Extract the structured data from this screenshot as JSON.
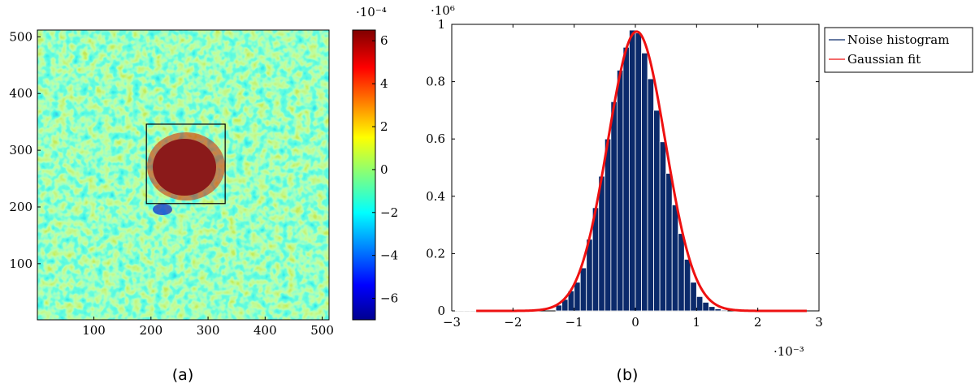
{
  "chart_data": [
    {
      "type": "heatmap",
      "caption": "(a)",
      "x_ticks": [
        "100",
        "200",
        "300",
        "400",
        "500"
      ],
      "x_tick_values": [
        100,
        200,
        300,
        400,
        500
      ],
      "y_ticks": [
        "100",
        "200",
        "300",
        "400",
        "500"
      ],
      "y_tick_values": [
        100,
        200,
        300,
        400,
        500
      ],
      "xlim": [
        1,
        512
      ],
      "ylim": [
        1,
        512
      ],
      "roi_box": {
        "x": [
          192,
          330
        ],
        "y": [
          206,
          346
        ]
      },
      "colorbar": {
        "exponent": "·10⁻⁴",
        "range": [
          -7,
          6.5
        ],
        "ticks": [
          "6",
          "4",
          "2",
          "0",
          "−2",
          "−4",
          "−6"
        ],
        "tick_values": [
          6,
          4,
          2,
          0,
          -2,
          -4,
          -6
        ],
        "colormap": "jet"
      },
      "colors": {
        "blob": "#8b1a1a",
        "background": "#7fffd0"
      }
    },
    {
      "type": "bar",
      "caption": "(b)",
      "y_exponent": "·10⁶",
      "x_exponent": "·10⁻³",
      "xlim": [
        -3,
        3
      ],
      "ylim": [
        0,
        1
      ],
      "x_ticks": [
        "−3",
        "−2",
        "−1",
        "0",
        "1",
        "2",
        "3"
      ],
      "x_tick_values": [
        -3,
        -2,
        -1,
        0,
        1,
        2,
        3
      ],
      "y_ticks": [
        "0",
        "0.2",
        "0.4",
        "0.6",
        "0.8",
        "1"
      ],
      "y_tick_values": [
        0,
        0.2,
        0.4,
        0.6,
        0.8,
        1
      ],
      "bins": {
        "centers": [
          -2.95,
          -2.85,
          -2.75,
          -2.65,
          -1.25,
          -1.15,
          -1.05,
          -0.95,
          -0.85,
          -0.75,
          -0.65,
          -0.55,
          -0.45,
          -0.35,
          -0.25,
          -0.15,
          -0.05,
          0.05,
          0.15,
          0.25,
          0.35,
          0.45,
          0.55,
          0.65,
          0.75,
          0.85,
          0.95,
          1.05,
          1.15,
          1.25,
          1.35,
          1.45
        ],
        "values": [
          0.002,
          0.002,
          0.002,
          0.002,
          0.02,
          0.04,
          0.07,
          0.1,
          0.15,
          0.25,
          0.36,
          0.47,
          0.6,
          0.73,
          0.84,
          0.92,
          0.98,
          0.97,
          0.9,
          0.81,
          0.7,
          0.59,
          0.48,
          0.37,
          0.27,
          0.18,
          0.1,
          0.05,
          0.03,
          0.015,
          0.007,
          0.003
        ]
      },
      "series": [
        {
          "name": "Noise histogram",
          "color": "#0b2a6b"
        },
        {
          "name": "Gaussian fit",
          "color": "#ee1111",
          "amplitude": 0.975,
          "mean": 0.02,
          "sigma": 0.47,
          "x_range": [
            -2.6,
            2.8
          ]
        }
      ],
      "legend": {
        "position": "outside-right"
      }
    }
  ]
}
